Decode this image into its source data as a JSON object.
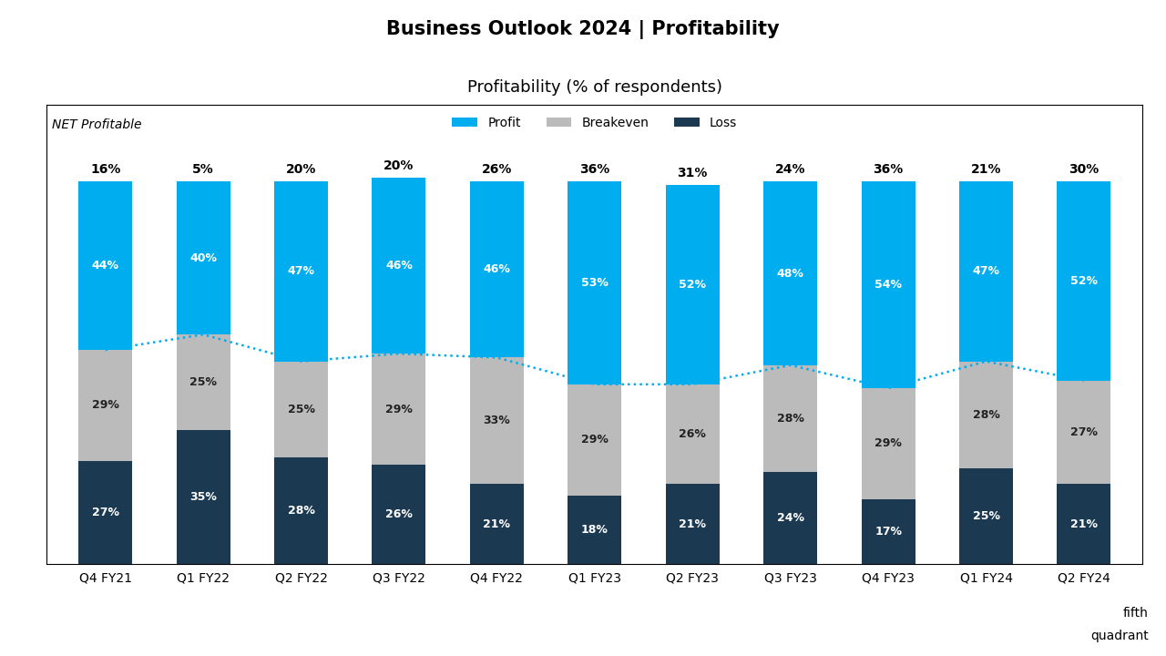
{
  "chart_data": {
    "type": "bar",
    "title": "Business Outlook 2024 | Profitability",
    "subtitle": "Profitability (% of respondents)",
    "categories": [
      "Q4 FY21",
      "Q1 FY22",
      "Q2 FY22",
      "Q3 FY22",
      "Q4 FY22",
      "Q1 FY23",
      "Q2 FY23",
      "Q3 FY23",
      "Q4 FY23",
      "Q1 FY24",
      "Q2 FY24"
    ],
    "stacked": true,
    "data_labels": true,
    "series": [
      {
        "name": "Profit",
        "color": "#00AEEF",
        "values": [
          44,
          40,
          47,
          46,
          46,
          53,
          52,
          48,
          54,
          47,
          52
        ],
        "value_labels": [
          "44%",
          "40%",
          "47%",
          "46%",
          "46%",
          "53%",
          "52%",
          "48%",
          "54%",
          "47%",
          "52%"
        ]
      },
      {
        "name": "Breakeven",
        "color": "#BBBBBB",
        "values": [
          29,
          25,
          25,
          29,
          33,
          29,
          26,
          28,
          29,
          28,
          27
        ],
        "value_labels": [
          "29%",
          "25%",
          "25%",
          "29%",
          "33%",
          "29%",
          "26%",
          "28%",
          "29%",
          "28%",
          "27%"
        ]
      },
      {
        "name": "Loss",
        "color": "#1B3A52",
        "values": [
          27,
          35,
          28,
          26,
          21,
          18,
          21,
          24,
          17,
          25,
          21
        ],
        "value_labels": [
          "27%",
          "35%",
          "28%",
          "26%",
          "21%",
          "18%",
          "21%",
          "24%",
          "17%",
          "25%",
          "21%"
        ]
      },
      {
        "type": "line",
        "line_style": "dotted",
        "color": "#00AEEF",
        "values": [
          56,
          60,
          53,
          55,
          54,
          47,
          47,
          52,
          46,
          53,
          48
        ]
      }
    ],
    "net_profitable": {
      "name": "NET Profitable",
      "values": [
        16,
        5,
        20,
        20,
        26,
        36,
        31,
        24,
        36,
        21,
        30
      ],
      "value_labels": [
        "16%",
        "5%",
        "20%",
        "20%",
        "26%",
        "36%",
        "31%",
        "24%",
        "36%",
        "21%",
        "30%"
      ]
    },
    "annotations": [
      "fifth",
      "quadrant"
    ],
    "ylim": [
      0,
      120
    ],
    "yticks": [],
    "tick_labels": "x",
    "legend": "upper center"
  }
}
